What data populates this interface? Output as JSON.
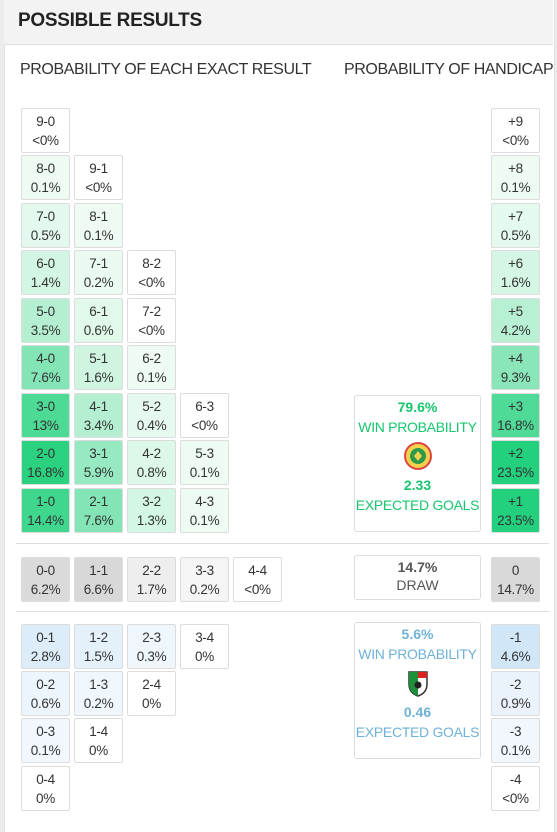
{
  "title": "POSSIBLE RESULTS",
  "left_heading": "PROBABILITY OF EACH EXACT RESULT",
  "right_heading": "PROBABILITY OF HANDICAP",
  "colors": {
    "home_text": "#17c66d",
    "away_text": "#6fb2d8",
    "draw_bg": "#dddddd"
  },
  "home_scores": [
    {
      "score": "9-0",
      "prob": "<0%"
    },
    {
      "score": "8-0",
      "prob": "0.1%"
    },
    {
      "score": "9-1",
      "prob": "<0%"
    },
    {
      "score": "7-0",
      "prob": "0.5%"
    },
    {
      "score": "8-1",
      "prob": "0.1%"
    },
    {
      "score": "6-0",
      "prob": "1.4%"
    },
    {
      "score": "7-1",
      "prob": "0.2%"
    },
    {
      "score": "8-2",
      "prob": "<0%"
    },
    {
      "score": "5-0",
      "prob": "3.5%"
    },
    {
      "score": "6-1",
      "prob": "0.6%"
    },
    {
      "score": "7-2",
      "prob": "<0%"
    },
    {
      "score": "4-0",
      "prob": "7.6%"
    },
    {
      "score": "5-1",
      "prob": "1.6%"
    },
    {
      "score": "6-2",
      "prob": "0.1%"
    },
    {
      "score": "3-0",
      "prob": "13%"
    },
    {
      "score": "4-1",
      "prob": "3.4%"
    },
    {
      "score": "5-2",
      "prob": "0.4%"
    },
    {
      "score": "6-3",
      "prob": "<0%"
    },
    {
      "score": "2-0",
      "prob": "16.8%"
    },
    {
      "score": "3-1",
      "prob": "5.9%"
    },
    {
      "score": "4-2",
      "prob": "0.8%"
    },
    {
      "score": "5-3",
      "prob": "0.1%"
    },
    {
      "score": "1-0",
      "prob": "14.4%"
    },
    {
      "score": "2-1",
      "prob": "7.6%"
    },
    {
      "score": "3-2",
      "prob": "1.3%"
    },
    {
      "score": "4-3",
      "prob": "0.1%"
    }
  ],
  "draw_scores": [
    {
      "score": "0-0",
      "prob": "6.2%"
    },
    {
      "score": "1-1",
      "prob": "6.6%"
    },
    {
      "score": "2-2",
      "prob": "1.7%"
    },
    {
      "score": "3-3",
      "prob": "0.2%"
    },
    {
      "score": "4-4",
      "prob": "<0%"
    }
  ],
  "away_scores": [
    {
      "score": "0-1",
      "prob": "2.8%"
    },
    {
      "score": "1-2",
      "prob": "1.5%"
    },
    {
      "score": "2-3",
      "prob": "0.3%"
    },
    {
      "score": "3-4",
      "prob": "0%"
    },
    {
      "score": "0-2",
      "prob": "0.6%"
    },
    {
      "score": "1-3",
      "prob": "0.2%"
    },
    {
      "score": "2-4",
      "prob": "0%"
    },
    {
      "score": "0-3",
      "prob": "0.1%"
    },
    {
      "score": "1-4",
      "prob": "0%"
    },
    {
      "score": "0-4",
      "prob": "0%"
    }
  ],
  "handicap": [
    {
      "label": "+9",
      "prob": "<0%"
    },
    {
      "label": "+8",
      "prob": "0.1%"
    },
    {
      "label": "+7",
      "prob": "0.5%"
    },
    {
      "label": "+6",
      "prob": "1.6%"
    },
    {
      "label": "+5",
      "prob": "4.2%"
    },
    {
      "label": "+4",
      "prob": "9.3%"
    },
    {
      "label": "+3",
      "prob": "16.8%"
    },
    {
      "label": "+2",
      "prob": "23.5%"
    },
    {
      "label": "+1",
      "prob": "23.5%"
    },
    {
      "label": "0",
      "prob": "14.7%"
    },
    {
      "label": "-1",
      "prob": "4.6%"
    },
    {
      "label": "-2",
      "prob": "0.9%"
    },
    {
      "label": "-3",
      "prob": "0.1%"
    },
    {
      "label": "-4",
      "prob": "<0%"
    }
  ],
  "home_win": {
    "pct": "79.6%",
    "label": "WIN PROBABILITY",
    "xg": "2.33",
    "xg_label": "EXPECTED GOALS",
    "crest_icon": "home-team-crest-icon"
  },
  "draw": {
    "pct": "14.7%",
    "label": "DRAW"
  },
  "away_win": {
    "pct": "5.6%",
    "label": "WIN PROBABILITY",
    "xg": "0.46",
    "xg_label": "EXPECTED GOALS",
    "crest_icon": "away-team-crest-icon"
  }
}
